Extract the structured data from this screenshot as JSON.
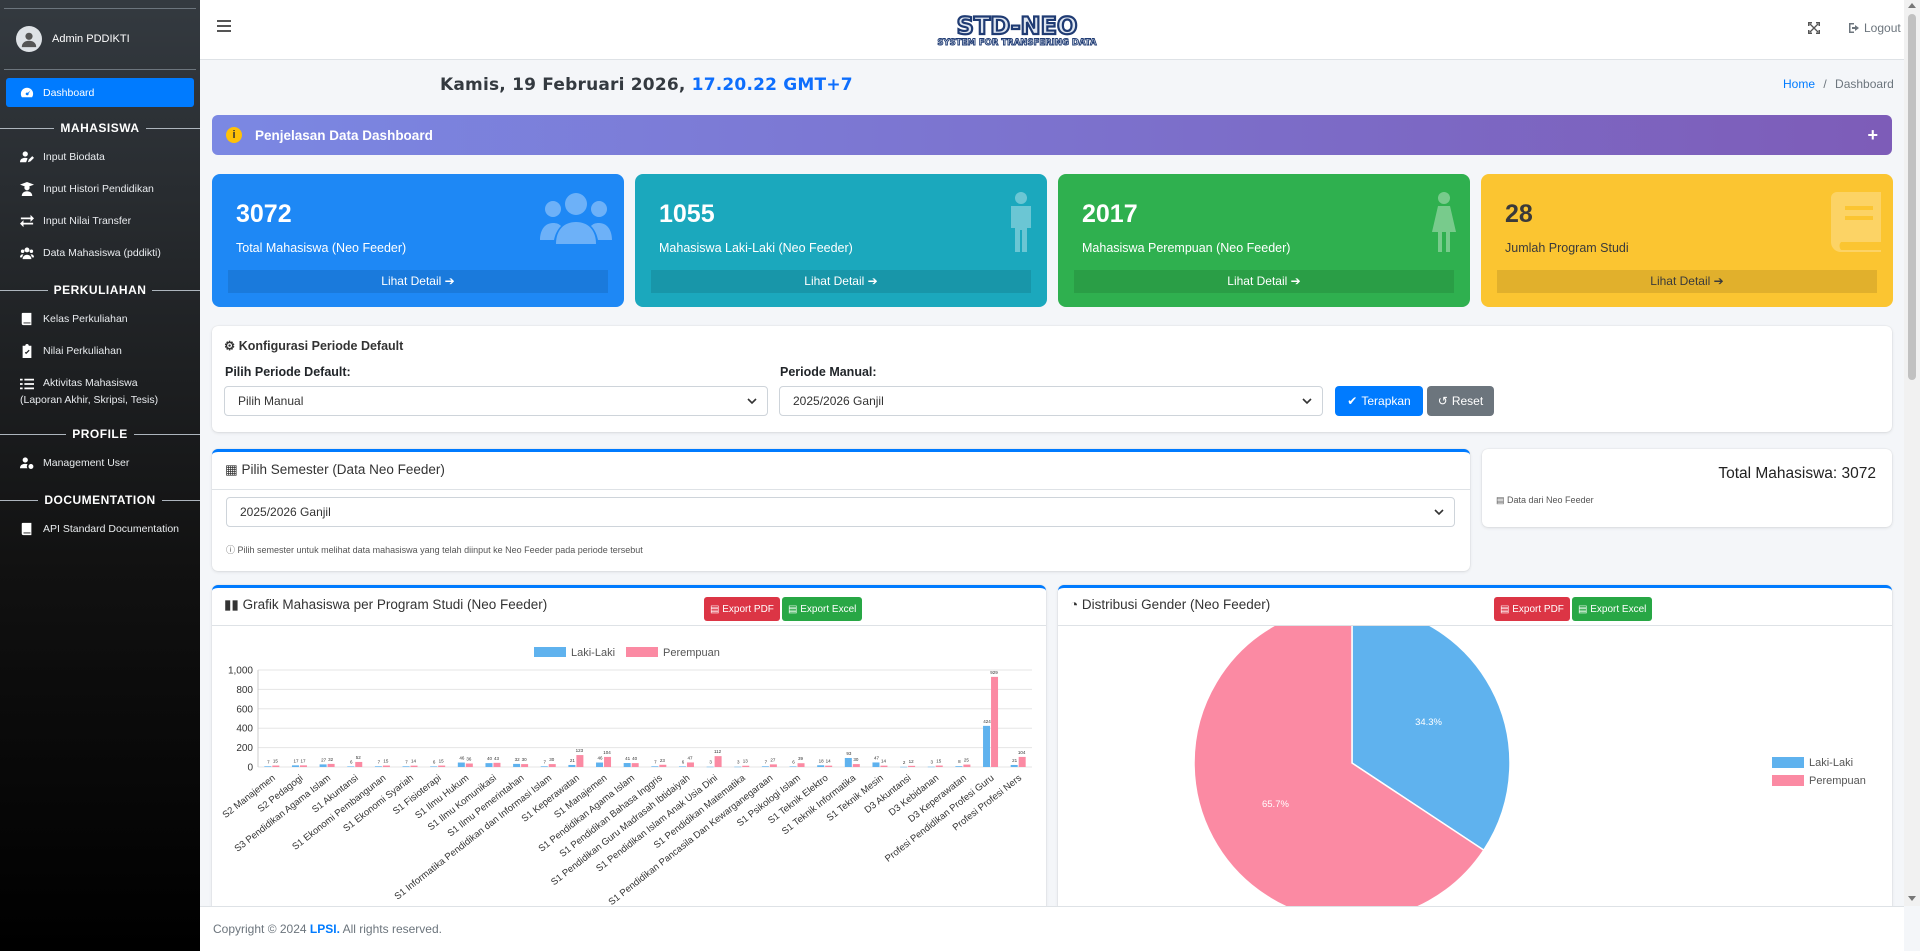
{
  "sidebar": {
    "user_name": "Admin PDDIKTI",
    "dashboard": "Dashboard",
    "sections": {
      "mahasiswa": "MAHASISWA",
      "perkuliahan": "PERKULIAHAN",
      "profile": "PROFILE",
      "documentation": "DOCUMENTATION"
    },
    "items": {
      "input_biodata": "Input Biodata",
      "input_histori": "Input Histori Pendidikan",
      "input_nilai_transfer": "Input Nilai Transfer",
      "data_mahasiswa": "Data Mahasiswa (pddikti)",
      "kelas_perkuliahan": "Kelas Perkuliahan",
      "nilai_perkuliahan": "Nilai Perkuliahan",
      "aktivitas_line1": "Aktivitas Mahasiswa",
      "aktivitas_line2": "(Laporan Akhir, Skripsi, Tesis)",
      "management_user": "Management User",
      "api_doc": "API Standard Documentation"
    }
  },
  "topbar": {
    "logo_text": "STD-NEO",
    "logo_sub": "SYSTEM FOR TRANSFERING DATA",
    "logout": "Logout"
  },
  "header": {
    "date": "Kamis, 19 Februari 2026,",
    "time": "17.20.22 GMT+7",
    "breadcrumb_home": "Home",
    "breadcrumb_sep": "/",
    "breadcrumb_current": "Dashboard"
  },
  "info_bar": {
    "title": "Penjelasan Data Dashboard",
    "plus": "+"
  },
  "stats": [
    {
      "value": "3072",
      "label": "Total Mahasiswa (Neo Feeder)",
      "detail": "Lihat Detail"
    },
    {
      "value": "1055",
      "label": "Mahasiswa Laki-Laki (Neo Feeder)",
      "detail": "Lihat Detail"
    },
    {
      "value": "2017",
      "label": "Mahasiswa Perempuan (Neo Feeder)",
      "detail": "Lihat Detail"
    },
    {
      "value": "28",
      "label": "Jumlah Program Studi",
      "detail": "Lihat Detail"
    }
  ],
  "config": {
    "title": "Konfigurasi Periode Default",
    "label_default": "Pilih Periode Default:",
    "value_default": "Pilih Manual",
    "label_manual": "Periode Manual:",
    "value_manual": "2025/2026 Ganjil",
    "apply": "Terapkan",
    "reset": "Reset"
  },
  "semester": {
    "title": "Pilih Semester (Data Neo Feeder)",
    "value": "2025/2026 Ganjil",
    "note": "Pilih semester untuk melihat data mahasiswa yang telah diinput ke Neo Feeder pada periode tersebut"
  },
  "total_card": {
    "text": "Total Mahasiswa: 3072",
    "sub": "Data dari Neo Feeder"
  },
  "bar_card": {
    "title": "Grafik Mahasiswa per Program Studi (Neo Feeder)",
    "export_pdf": "Export PDF",
    "export_excel": "Export Excel"
  },
  "pie_card": {
    "title": "Distribusi Gender (Neo Feeder)",
    "export_pdf": "Export PDF",
    "export_excel": "Export Excel"
  },
  "footer": {
    "prefix": "Copyright © 2024",
    "brand": "LPSI.",
    "suffix": "All rights reserved."
  },
  "colors": {
    "laki": "#5fb2ee",
    "perempuan": "#fb8aa3",
    "primary": "#007bff"
  },
  "chart_data": [
    {
      "type": "bar",
      "legend": [
        "Laki-Laki",
        "Perempuan"
      ],
      "ylim": [
        0,
        1000
      ],
      "yticks": [
        "0",
        "200",
        "400",
        "600",
        "800",
        "1,000"
      ],
      "categories": [
        "S2 Manajemen",
        "S2 Pedagogi",
        "S3 Pendidikan Agama Islam",
        "S1 Akuntansi",
        "S1 Ekonomi Pembangunan",
        "S1 Ekonomi Syariah",
        "S1 Fisioterapi",
        "S1 Ilmu Hukum",
        "S1 Ilmu Komunikasi",
        "S1 Ilmu Pemerintahan",
        "S1 Informatika Pendidikan dan Informasi Islam",
        "S1 Keperawatan",
        "S1 Manajemen",
        "S1 Pendidikan Agama Islam",
        "S1 Pendidikan Bahasa Inggris",
        "S1 Pendidikan Guru Madrasah Ibtidaiyah",
        "S1 Pendidikan Islam Anak Usia Dini",
        "S1 Pendidikan Matematika",
        "S1 Pendidikan Pancasila Dan Kewarganegaraan",
        "S1 Psikologi Islam",
        "S1 Teknik Elektro",
        "S1 Teknik Informatika",
        "S1 Teknik Mesin",
        "D3 Akuntansi",
        "D3 Kebidanan",
        "D3 Keperawatan",
        "Profesi Pendidikan Profesi Guru",
        "Profesi Profesi Ners"
      ],
      "series": [
        {
          "name": "Laki-Laki",
          "values": [
            7,
            17,
            27,
            6,
            7,
            7,
            6,
            46,
            40,
            32,
            7,
            21,
            46,
            41,
            7,
            6,
            3,
            3,
            7,
            6,
            18,
            93,
            47,
            2,
            3,
            8,
            424,
            21
          ]
        },
        {
          "name": "Perempuan",
          "values": [
            15,
            17,
            32,
            52,
            15,
            14,
            15,
            36,
            43,
            30,
            30,
            123,
            104,
            40,
            23,
            47,
            112,
            13,
            27,
            39,
            14,
            30,
            14,
            12,
            15,
            25,
            929,
            104
          ]
        },
        {
          "name": "data_labels_l",
          "values": [
            "7",
            "17",
            "27",
            "6",
            "7",
            "7",
            "6",
            "46",
            "40",
            "32",
            "7",
            "21",
            "46",
            "41",
            "7",
            "6",
            "3",
            "3",
            "7",
            "6",
            "18",
            "93",
            "47",
            "2",
            "3",
            "8",
            "424",
            "21"
          ]
        },
        {
          "name": "data_labels_p",
          "values": [
            "15",
            "17",
            "32",
            "52",
            "15",
            "14",
            "15",
            "36",
            "43",
            "30",
            "30",
            "123",
            "104",
            "40",
            "23",
            "47",
            "112",
            "13",
            "27",
            "39",
            "14",
            "30",
            "14",
            "12",
            "15",
            "25",
            "929",
            "104"
          ]
        }
      ]
    },
    {
      "type": "pie",
      "legend": [
        "Laki-Laki",
        "Perempuan"
      ],
      "values": [
        34.3,
        65.7
      ],
      "labels": [
        "34.3%",
        "65.7%"
      ]
    }
  ]
}
